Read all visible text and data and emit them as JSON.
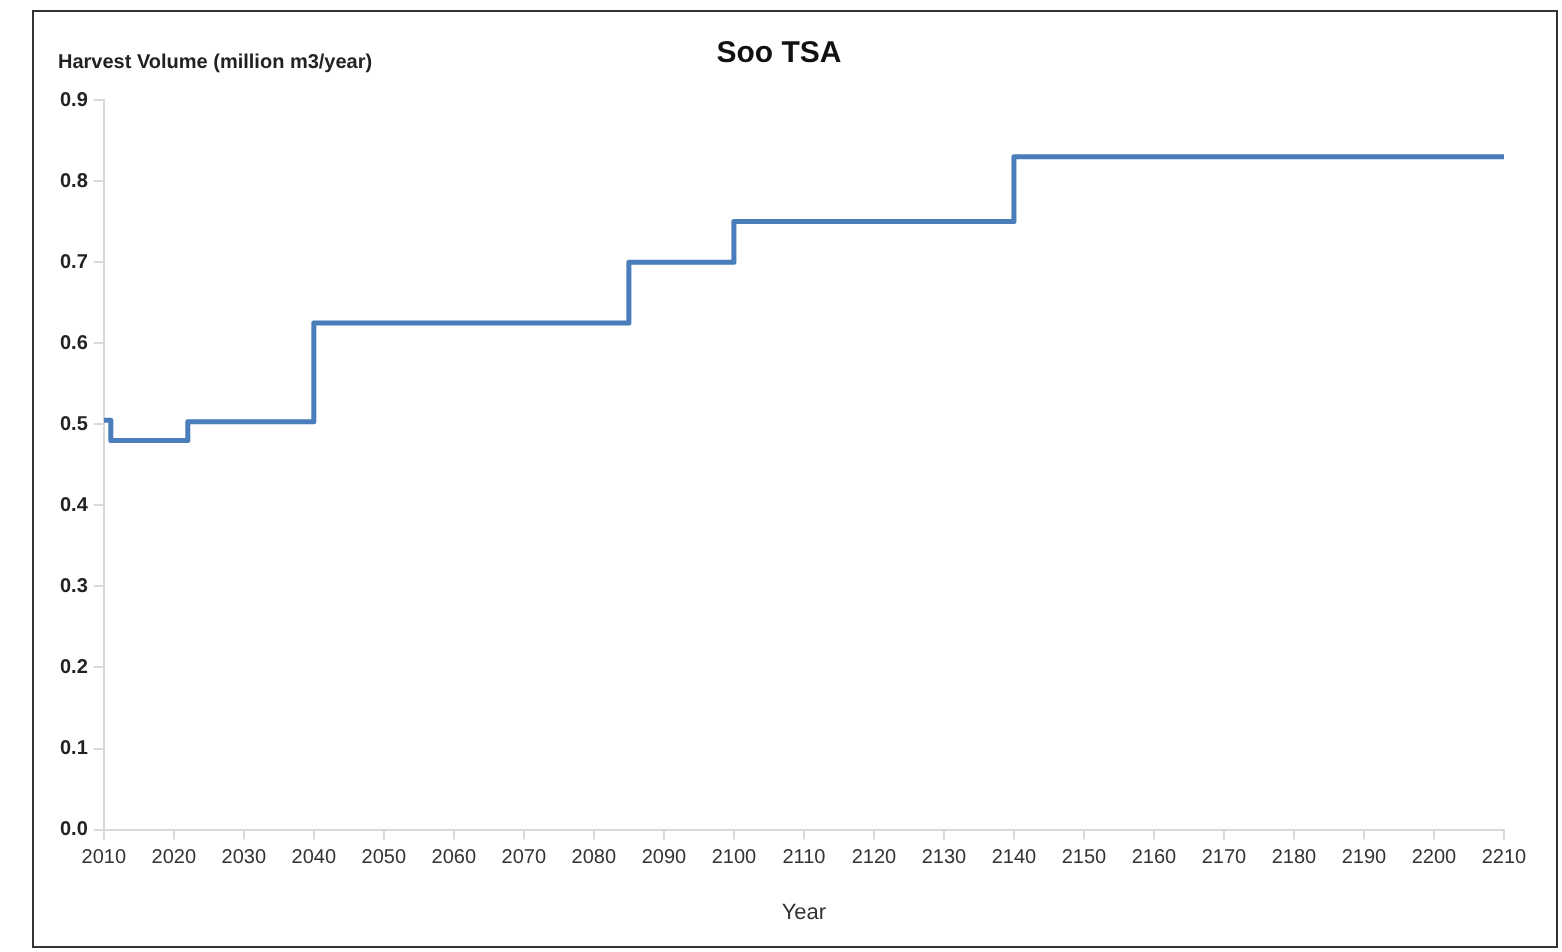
{
  "chart_data": {
    "type": "step",
    "title": "Soo TSA",
    "xlabel": "Year",
    "ylabel": "Harvest Volume (million m3/year)",
    "x": [
      2010,
      2011,
      2022,
      2040,
      2085,
      2100,
      2140,
      2210
    ],
    "series": [
      {
        "color": "#4a7ebb",
        "values": [
          0.505,
          0.48,
          0.503,
          0.625,
          0.7,
          0.75,
          0.83,
          0.83
        ]
      }
    ],
    "xlim": [
      2010,
      2210
    ],
    "xticks": [
      2010,
      2020,
      2030,
      2040,
      2050,
      2060,
      2070,
      2080,
      2090,
      2100,
      2110,
      2120,
      2130,
      2140,
      2150,
      2160,
      2170,
      2180,
      2190,
      2200,
      2210
    ],
    "ylim": [
      0,
      0.9
    ],
    "yticks": [
      {
        "value": 0,
        "label": "0.0"
      },
      {
        "value": 0.1,
        "label": "0.1"
      },
      {
        "value": 0.2,
        "label": "0.2"
      },
      {
        "value": 0.3,
        "label": "0.3"
      },
      {
        "value": 0.4,
        "label": "0.4"
      },
      {
        "value": 0.5,
        "label": "0.5"
      },
      {
        "value": 0.6,
        "label": "0.6"
      },
      {
        "value": 0.7,
        "label": "0.7"
      },
      {
        "value": 0.8,
        "label": "0.8"
      },
      {
        "value": 0.9,
        "label": "0.9"
      }
    ],
    "grid": false,
    "legend": false,
    "marker": "none",
    "line_style": "solid"
  }
}
